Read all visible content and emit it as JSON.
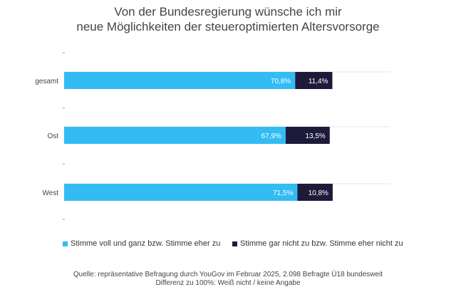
{
  "title_lines": [
    "Von der Bundesregierung wünsche ich mir",
    "neue Möglichkeiten der steueroptimierten Altersvorsorge"
  ],
  "chart_data": {
    "type": "bar",
    "orientation": "horizontal",
    "stacked": true,
    "categories": [
      "gesamt",
      "Ost",
      "West"
    ],
    "series": [
      {
        "name": "Stimme voll und ganz bzw. Stimme eher zu",
        "values": [
          70.8,
          67.9,
          71.5
        ],
        "labels": [
          "70,8%",
          "67,9%",
          "71,5%"
        ],
        "color": "#33bbf3",
        "label_color": "#ffffff"
      },
      {
        "name": "Stimme gar nicht zu bzw. Stimme eher nicht zu",
        "values": [
          11.4,
          13.5,
          10.8
        ],
        "labels": [
          "11,4%",
          "13,5%",
          "10,8%"
        ],
        "color": "#1d1a3a",
        "label_color": "#ffffff"
      }
    ],
    "xlim": [
      0,
      100
    ],
    "grid": true,
    "legend_position": "bottom"
  },
  "legend": {
    "item1": "Stimme voll und ganz bzw. Stimme eher zu",
    "item2": "Stimme gar nicht zu bzw. Stimme eher nicht zu"
  },
  "source_lines": [
    "Quelle: repräsentative Befragung durch YouGov im Februar 2025, 2.098 Befragte Ü18 bundesweit",
    "Differenz zu 100%: Weiß nicht / keine Angabe"
  ]
}
